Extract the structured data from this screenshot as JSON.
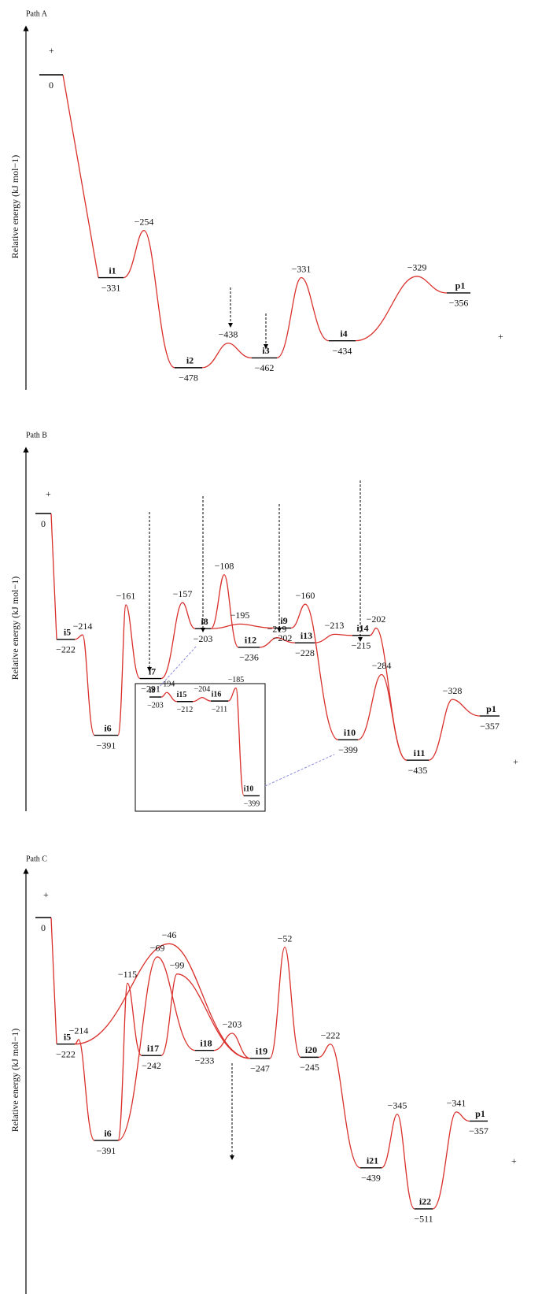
{
  "panels": [
    {
      "title": "Path A",
      "y_label": "Relative energy (kJ mol−1)",
      "plus": [
        "+",
        "+"
      ],
      "minima": [
        {
          "energy": 0
        },
        {
          "name": "i1",
          "energy": -331,
          "label": "−331"
        },
        {
          "name": "i2",
          "energy": -478,
          "label": "−478"
        },
        {
          "name": "i3",
          "energy": -462,
          "label": "−462"
        },
        {
          "name": "i4",
          "energy": -434,
          "label": "−434"
        },
        {
          "name": "p1",
          "energy": -356,
          "label": "−356"
        }
      ],
      "transition_states": [
        {
          "energy": -254,
          "label": "−254"
        },
        {
          "energy": -438,
          "label": "−438"
        },
        {
          "energy": -331,
          "label": "−331"
        },
        {
          "energy": -329,
          "label": "−329"
        }
      ]
    },
    {
      "title": "Path B",
      "y_label": "Relative energy (kJ mol−1)",
      "plus": [
        "+",
        "+"
      ],
      "minima": [
        {
          "energy": 0
        },
        {
          "name": "i5",
          "energy": -222,
          "label": "−222"
        },
        {
          "name": "i6",
          "energy": -391,
          "label": "−391"
        },
        {
          "name": "i7",
          "energy": -291,
          "label": "−291"
        },
        {
          "name": "i8",
          "energy": -203,
          "label": "−203"
        },
        {
          "name": "i12",
          "energy": -236,
          "label": "−236"
        },
        {
          "name": "i9",
          "energy": -202,
          "label": "−202"
        },
        {
          "name": "i13",
          "energy": -228,
          "label": "−228"
        },
        {
          "name": "i14",
          "energy": -215,
          "label": "−215"
        },
        {
          "name": "i10",
          "energy": -399,
          "label": "−399"
        },
        {
          "name": "i11",
          "energy": -435,
          "label": "−435"
        },
        {
          "name": "p1",
          "energy": -357,
          "label": "−357"
        }
      ],
      "transition_states": [
        {
          "energy": -214,
          "label": "−214"
        },
        {
          "energy": -161,
          "label": "−161"
        },
        {
          "energy": -157,
          "label": "−157"
        },
        {
          "energy": -108,
          "label": "−108"
        },
        {
          "energy": -195,
          "label": "−195"
        },
        {
          "energy": -160,
          "label": "−160"
        },
        {
          "energy": -219,
          "label": "−219"
        },
        {
          "energy": -213,
          "label": "−213"
        },
        {
          "energy": -202,
          "label": "−202"
        },
        {
          "energy": -284,
          "label": "−284"
        },
        {
          "energy": -328,
          "label": "−328"
        }
      ],
      "inset": {
        "minima": [
          {
            "name": "i8",
            "energy": -203,
            "label": "−203"
          },
          {
            "name": "i15",
            "energy": -212,
            "label": "−212"
          },
          {
            "name": "i16",
            "energy": -211,
            "label": "−211"
          },
          {
            "name": "i10",
            "energy": -399,
            "label": "−399"
          }
        ],
        "transition_states": [
          {
            "energy": -194,
            "label": "−194"
          },
          {
            "energy": -204,
            "label": "−204"
          },
          {
            "energy": -185,
            "label": "−185"
          }
        ]
      }
    },
    {
      "title": "Path C",
      "y_label": "Relative energy (kJ mol−1)",
      "plus": [
        "+",
        "+"
      ],
      "minima": [
        {
          "energy": 0
        },
        {
          "name": "i5",
          "energy": -222,
          "label": "−222"
        },
        {
          "name": "i6",
          "energy": -391,
          "label": "−391"
        },
        {
          "name": "i17",
          "energy": -242,
          "label": "−242"
        },
        {
          "name": "i18",
          "energy": -233,
          "label": "−233"
        },
        {
          "name": "i19",
          "energy": -247,
          "label": "−247"
        },
        {
          "name": "i20",
          "energy": -245,
          "label": "−245"
        },
        {
          "name": "i21",
          "energy": -439,
          "label": "−439"
        },
        {
          "name": "i22",
          "energy": -511,
          "label": "−511"
        },
        {
          "name": "p1",
          "energy": -357,
          "label": "−357"
        }
      ],
      "transition_states": [
        {
          "energy": -214,
          "label": "−214"
        },
        {
          "energy": -46,
          "label": "−46"
        },
        {
          "energy": -115,
          "label": "−115"
        },
        {
          "energy": -69,
          "label": "−69"
        },
        {
          "energy": -99,
          "label": "−99"
        },
        {
          "energy": -203,
          "label": "−203"
        },
        {
          "energy": -52,
          "label": "−52"
        },
        {
          "energy": -222,
          "label": "−222"
        },
        {
          "energy": -345,
          "label": "−345"
        },
        {
          "energy": -341,
          "label": "−341"
        }
      ]
    }
  ]
}
